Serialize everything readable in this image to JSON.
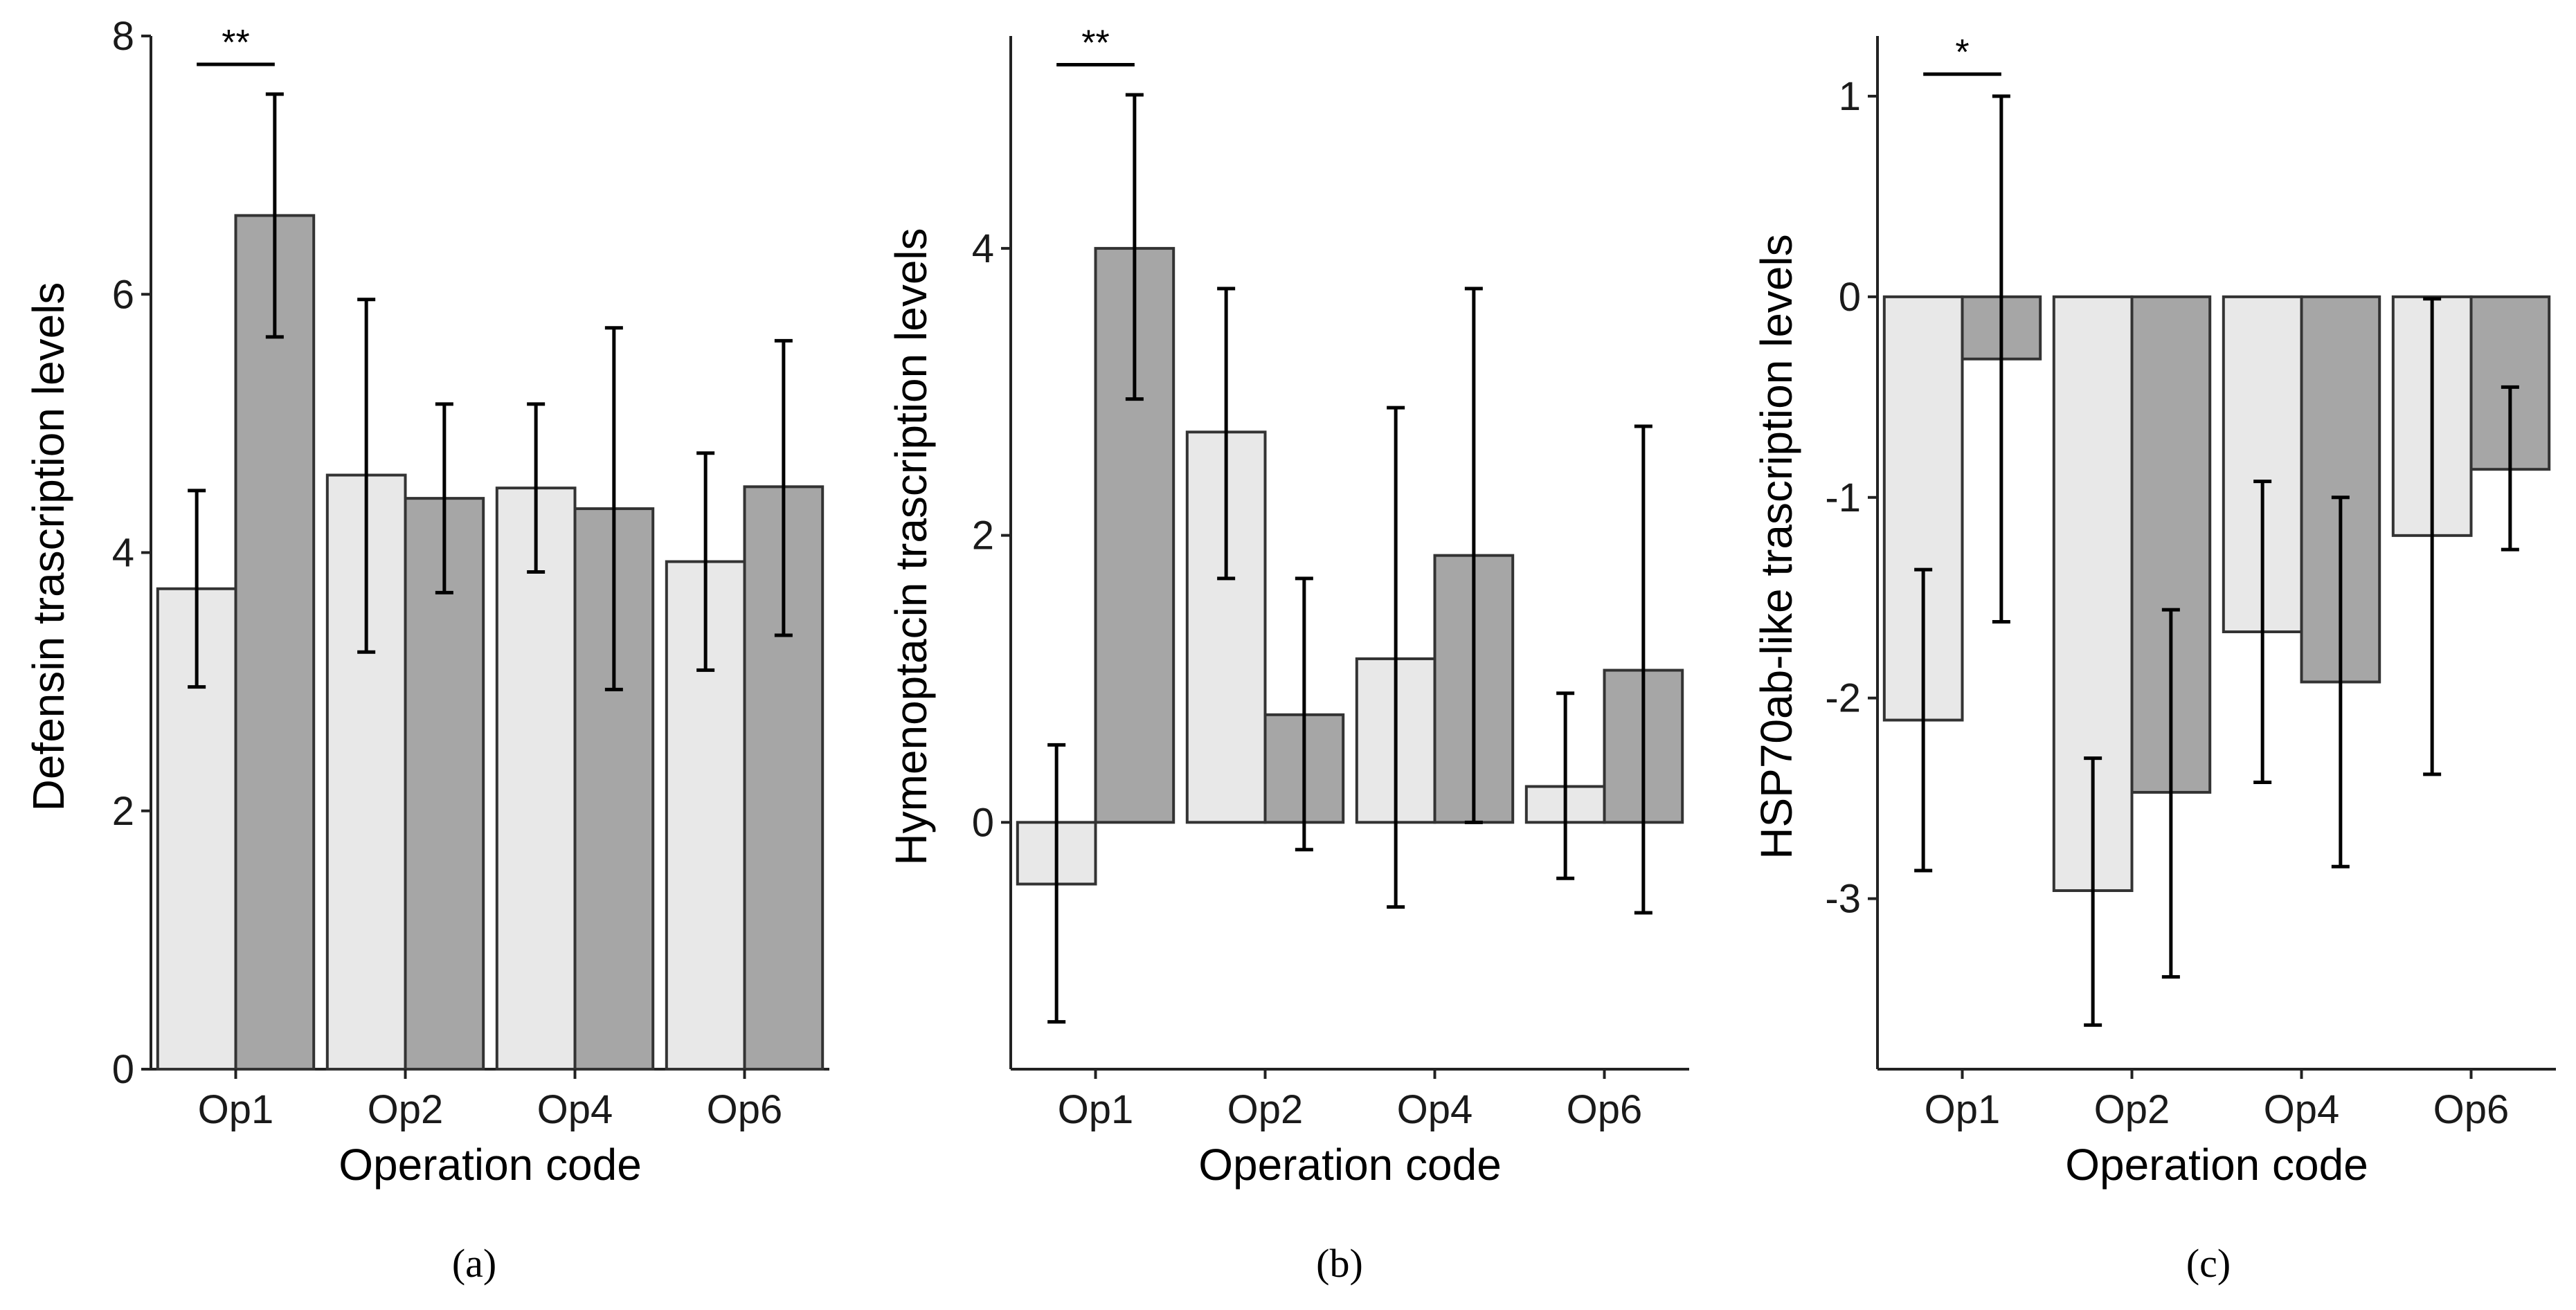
{
  "chart_data": [
    {
      "type": "bar",
      "panel_label": "(a)",
      "panel_letter": "a",
      "xlabel": "Operation code",
      "ylabel": "Defensin trascription levels",
      "categories": [
        "Op1",
        "Op2",
        "Op4",
        "Op6"
      ],
      "ylim": [
        0,
        8
      ],
      "yticks": [
        0,
        2,
        4,
        6,
        8
      ],
      "series": [
        {
          "name": "light",
          "color": "#e8e8e8",
          "values": [
            3.72,
            4.6,
            4.5,
            3.93
          ],
          "err_low": [
            2.96,
            3.23,
            3.85,
            3.09
          ],
          "err_high": [
            4.48,
            5.96,
            5.15,
            4.77
          ]
        },
        {
          "name": "dark",
          "color": "#a6a6a6",
          "values": [
            6.61,
            4.42,
            4.34,
            4.51
          ],
          "err_low": [
            5.67,
            3.69,
            2.94,
            3.36
          ],
          "err_high": [
            7.55,
            5.15,
            5.74,
            5.64
          ]
        }
      ],
      "significance": {
        "category": "Op1",
        "label": "**",
        "y": 7.78
      }
    },
    {
      "type": "bar",
      "panel_label": "(b)",
      "panel_letter": "b",
      "xlabel": "Operation code",
      "ylabel": "Hymenoptacin trascription levels",
      "categories": [
        "Op1",
        "Op2",
        "Op4",
        "Op6"
      ],
      "ylim": [
        -1.72,
        5.48
      ],
      "yticks": [
        0,
        2,
        4
      ],
      "series": [
        {
          "name": "light",
          "color": "#e8e8e8",
          "values": [
            -0.43,
            2.72,
            1.14,
            0.25
          ],
          "err_low": [
            -1.39,
            1.7,
            -0.59,
            -0.39
          ],
          "err_high": [
            0.54,
            3.72,
            2.89,
            0.9
          ]
        },
        {
          "name": "dark",
          "color": "#a6a6a6",
          "values": [
            4.0,
            0.75,
            1.86,
            1.06
          ],
          "err_low": [
            2.95,
            -0.19,
            0.0,
            -0.63
          ],
          "err_high": [
            5.07,
            1.7,
            3.72,
            2.76
          ]
        }
      ],
      "significance": {
        "category": "Op1",
        "label": "**",
        "y": 5.28
      }
    },
    {
      "type": "bar",
      "panel_label": "(c)",
      "panel_letter": "c",
      "xlabel": "Operation code",
      "ylabel": "HSP70ab-like trascription levels",
      "categories": [
        "Op1",
        "Op2",
        "Op4",
        "Op6"
      ],
      "ylim": [
        -3.85,
        1.3
      ],
      "yticks": [
        -3,
        -2,
        -1,
        0,
        1
      ],
      "series": [
        {
          "name": "light",
          "color": "#e8e8e8",
          "values": [
            -2.11,
            -2.96,
            -1.67,
            -1.19
          ],
          "err_low": [
            -2.86,
            -3.63,
            -2.42,
            -2.38
          ],
          "err_high": [
            -1.36,
            -2.3,
            -0.92,
            -0.01
          ]
        },
        {
          "name": "dark",
          "color": "#a6a6a6",
          "values": [
            -0.31,
            -2.47,
            -1.92,
            -0.86
          ],
          "err_low": [
            -1.62,
            -3.39,
            -2.84,
            -1.26
          ],
          "err_high": [
            1.0,
            -1.56,
            -1.0,
            -0.45
          ]
        }
      ],
      "significance": {
        "category": "Op1",
        "label": "*",
        "y": 1.11
      }
    }
  ]
}
